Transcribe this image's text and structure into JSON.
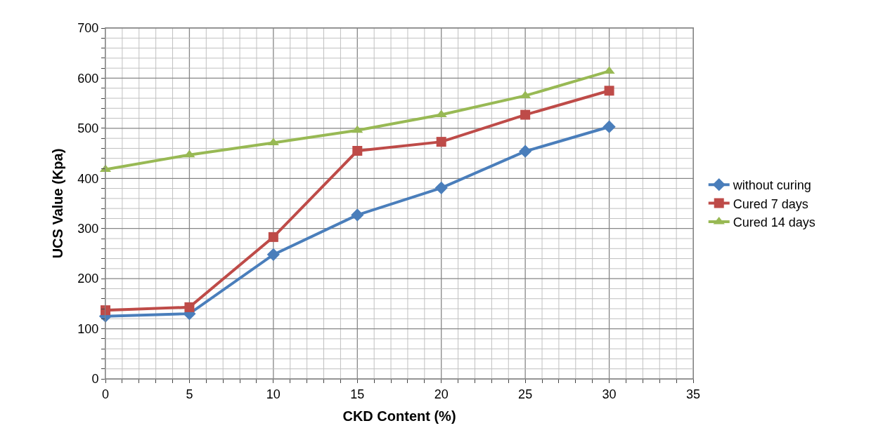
{
  "chart_data": {
    "type": "line",
    "xlabel": "CKD Content (%)",
    "ylabel": "UCS Value (Kpa)",
    "x": [
      0,
      5,
      10,
      15,
      20,
      25,
      30
    ],
    "series": [
      {
        "name": "without curing",
        "color": "#4a7ebb",
        "marker": "diamond",
        "values": [
          125,
          130,
          248,
          327,
          381,
          454,
          503
        ]
      },
      {
        "name": "Cured 7 days",
        "color": "#be4b48",
        "marker": "square",
        "values": [
          137,
          143,
          283,
          455,
          473,
          527,
          575
        ]
      },
      {
        "name": "Cured 14 days",
        "color": "#98b954",
        "marker": "triangle",
        "values": [
          418,
          447,
          471,
          496,
          527,
          565,
          614
        ]
      }
    ],
    "xlim": [
      0,
      35
    ],
    "ylim": [
      0,
      700
    ],
    "xticks": [
      0,
      {
        "value": 1,
        "label": null
      },
      {
        "value": 2,
        "label": null
      },
      {
        "value": 3,
        "label": null
      },
      {
        "value": 4,
        "label": null
      },
      5,
      {
        "value": 6,
        "label": null
      },
      {
        "value": 7,
        "label": null
      },
      {
        "value": 8,
        "label": null
      },
      {
        "value": 9,
        "label": null
      },
      10,
      {
        "value": 11,
        "label": null
      },
      {
        "value": 12,
        "label": null
      },
      {
        "value": 13,
        "label": null
      },
      {
        "value": 14,
        "label": null
      },
      15,
      {
        "value": 16,
        "label": null
      },
      {
        "value": 17,
        "label": null
      },
      {
        "value": 18,
        "label": null
      },
      {
        "value": 19,
        "label": null
      },
      20,
      {
        "value": 21,
        "label": null
      },
      {
        "value": 22,
        "label": null
      },
      {
        "value": 23,
        "label": null
      },
      {
        "value": 24,
        "label": null
      },
      25,
      {
        "value": 26,
        "label": null
      },
      {
        "value": 27,
        "label": null
      },
      {
        "value": 28,
        "label": null
      },
      {
        "value": 29,
        "label": null
      },
      30,
      {
        "value": 31,
        "label": null
      },
      {
        "value": 32,
        "label": null
      },
      {
        "value": 33,
        "label": null
      },
      {
        "value": 34,
        "label": null
      },
      35
    ],
    "yticks": [
      0,
      {
        "value": 20,
        "label": null
      },
      {
        "value": 40,
        "label": null
      },
      {
        "value": 60,
        "label": null
      },
      {
        "value": 80,
        "label": null
      },
      100,
      {
        "value": 120,
        "label": null
      },
      {
        "value": 140,
        "label": null
      },
      {
        "value": 160,
        "label": null
      },
      {
        "value": 180,
        "label": null
      },
      200,
      {
        "value": 220,
        "label": null
      },
      {
        "value": 240,
        "label": null
      },
      {
        "value": 260,
        "label": null
      },
      {
        "value": 280,
        "label": null
      },
      300,
      {
        "value": 320,
        "label": null
      },
      {
        "value": 340,
        "label": null
      },
      {
        "value": 360,
        "label": null
      },
      {
        "value": 380,
        "label": null
      },
      400,
      {
        "value": 420,
        "label": null
      },
      {
        "value": 440,
        "label": null
      },
      {
        "value": 460,
        "label": null
      },
      {
        "value": 480,
        "label": null
      },
      500,
      {
        "value": 520,
        "label": null
      },
      {
        "value": 540,
        "label": null
      },
      {
        "value": 560,
        "label": null
      },
      {
        "value": 580,
        "label": null
      },
      600,
      {
        "value": 620,
        "label": null
      },
      {
        "value": 640,
        "label": null
      },
      {
        "value": 660,
        "label": null
      },
      {
        "value": 680,
        "label": null
      },
      700
    ],
    "grid": true,
    "legend": "right",
    "line_style": "solid"
  }
}
